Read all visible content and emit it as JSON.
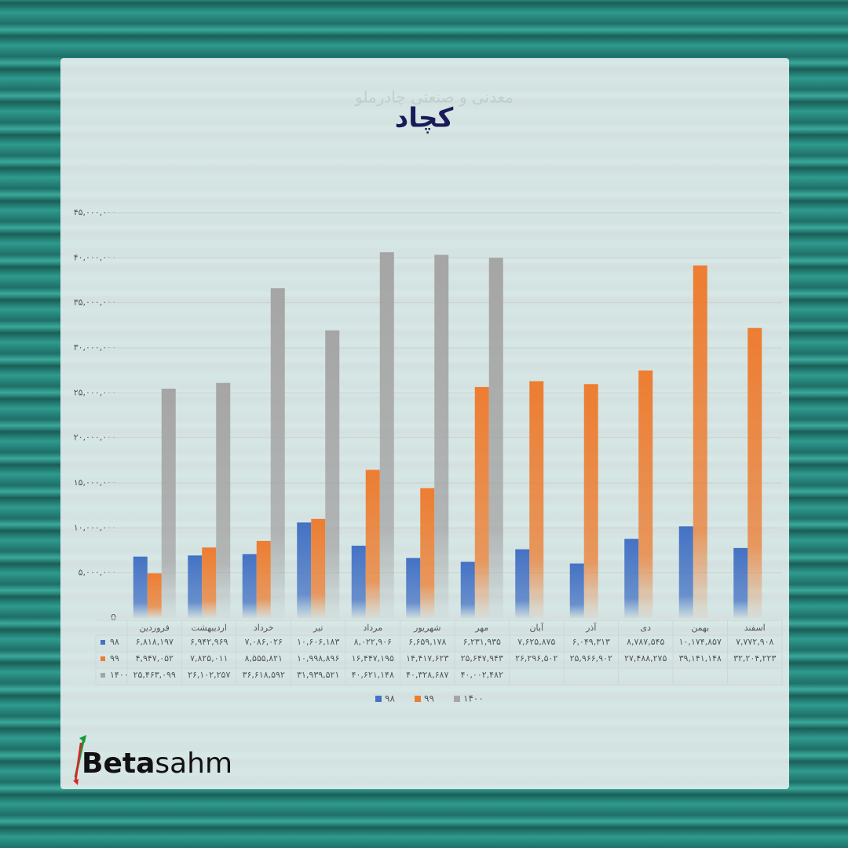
{
  "chart_data": {
    "type": "bar",
    "title": "کچاد",
    "watermark": "معدنی و صنعتی چادرملو",
    "categories": [
      "فروردین",
      "اردیبهشت",
      "خرداد",
      "تیر",
      "مرداد",
      "شهریور",
      "مهر",
      "آبان",
      "آذر",
      "دی",
      "بهمن",
      "اسفند"
    ],
    "series": [
      {
        "name": "۹۸",
        "color": "#4472c4",
        "values": [
          6818197,
          6942969,
          7086026,
          10606183,
          8022906,
          6659178,
          6231935,
          7625875,
          6049313,
          8787545,
          10174857,
          7772908
        ],
        "value_labels": [
          "۶,۸۱۸,۱۹۷",
          "۶,۹۴۲,۹۶۹",
          "۷,۰۸۶,۰۲۶",
          "۱۰,۶۰۶,۱۸۳",
          "۸,۰۲۲,۹۰۶",
          "۶,۶۵۹,۱۷۸",
          "۶,۲۳۱,۹۳۵",
          "۷,۶۲۵,۸۷۵",
          "۶,۰۴۹,۳۱۳",
          "۸,۷۸۷,۵۴۵",
          "۱۰,۱۷۴,۸۵۷",
          "۷,۷۷۲,۹۰۸"
        ]
      },
      {
        "name": "۹۹",
        "color": "#ed7d31",
        "values": [
          4947052,
          7825011,
          8555821,
          10998896,
          16447195,
          14417623,
          25647943,
          26296502,
          25966902,
          27488275,
          39141148,
          32204223
        ],
        "value_labels": [
          "۴,۹۴۷,۰۵۲",
          "۷,۸۲۵,۰۱۱",
          "۸,۵۵۵,۸۲۱",
          "۱۰,۹۹۸,۸۹۶",
          "۱۶,۴۴۷,۱۹۵",
          "۱۴,۴۱۷,۶۲۳",
          "۲۵,۶۴۷,۹۴۳",
          "۲۶,۲۹۶,۵۰۲",
          "۲۵,۹۶۶,۹۰۲",
          "۲۷,۴۸۸,۲۷۵",
          "۳۹,۱۴۱,۱۴۸",
          "۳۲,۲۰۴,۲۲۳"
        ]
      },
      {
        "name": "۱۴۰۰",
        "color": "#a5a5a5",
        "values": [
          25463099,
          26102257,
          36618592,
          31939521,
          40621148,
          40328687,
          40002482,
          null,
          null,
          null,
          null,
          null
        ],
        "value_labels": [
          "۲۵,۴۶۳,۰۹۹",
          "۲۶,۱۰۲,۲۵۷",
          "۳۶,۶۱۸,۵۹۲",
          "۳۱,۹۳۹,۵۲۱",
          "۴۰,۶۲۱,۱۴۸",
          "۴۰,۳۲۸,۶۸۷",
          "۴۰,۰۰۲,۴۸۲",
          null,
          null,
          null,
          null,
          null
        ]
      }
    ],
    "ylim": [
      0,
      45000000
    ],
    "yticks": [
      0,
      {
        "value": 5000000,
        "label": "۵,۰۰۰,۰۰۰"
      },
      {
        "value": 10000000,
        "label": "۱۰,۰۰۰,۰۰۰"
      },
      {
        "value": 15000000,
        "label": "۱۵,۰۰۰,۰۰۰"
      },
      {
        "value": 20000000,
        "label": "۲۰,۰۰۰,۰۰۰"
      },
      {
        "value": 25000000,
        "label": "۲۵,۰۰۰,۰۰۰"
      },
      {
        "value": 30000000,
        "label": "۳۰,۰۰۰,۰۰۰"
      },
      {
        "value": 35000000,
        "label": "۳۵,۰۰۰,۰۰۰"
      },
      {
        "value": 40000000,
        "label": "۴۰,۰۰۰,۰۰۰"
      },
      {
        "value": 45000000,
        "label": "۴۵,۰۰۰,۰۰۰"
      }
    ],
    "grid": true,
    "legend": "bottom"
  },
  "logo": {
    "bold": "Beta",
    "regular": "sahm"
  }
}
